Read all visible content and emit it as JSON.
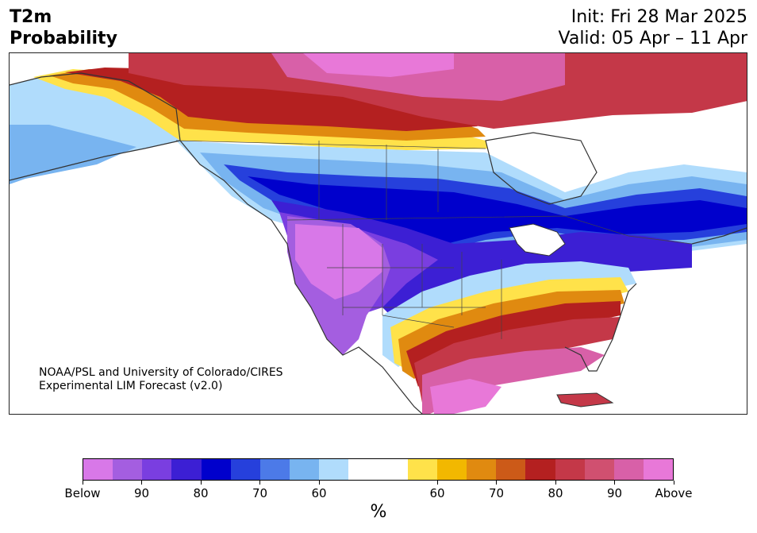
{
  "header": {
    "title_line1": "T2m",
    "title_line2": "Probability",
    "init": "Init: Fri 28 Mar 2025",
    "valid": "Valid: 05 Apr – 11 Apr"
  },
  "map": {
    "credit_line1": "NOAA/PSL and University of Colorado/CIRES",
    "credit_line2": "Experimental LIM Forecast (v2.0)"
  },
  "colorbar": {
    "colors": [
      "#d878e8",
      "#a45ee0",
      "#7a3ee0",
      "#3c1fd4",
      "#0000cc",
      "#2640dc",
      "#4c7ae8",
      "#78b4f0",
      "#b0dcfc",
      "#ffffff",
      "#ffffff",
      "#ffe24a",
      "#f2b800",
      "#e08a10",
      "#cc5a18",
      "#b42020",
      "#c43848",
      "#d05070",
      "#d860a8",
      "#e878d8"
    ],
    "ticks": [
      {
        "label": "Below",
        "i": 0
      },
      {
        "label": "90",
        "i": 2
      },
      {
        "label": "80",
        "i": 4
      },
      {
        "label": "70",
        "i": 6
      },
      {
        "label": "60",
        "i": 8
      },
      {
        "label": "60",
        "i": 12
      },
      {
        "label": "70",
        "i": 14
      },
      {
        "label": "80",
        "i": 16
      },
      {
        "label": "90",
        "i": 18
      },
      {
        "label": "Above",
        "i": 20
      }
    ],
    "unit": "%"
  }
}
